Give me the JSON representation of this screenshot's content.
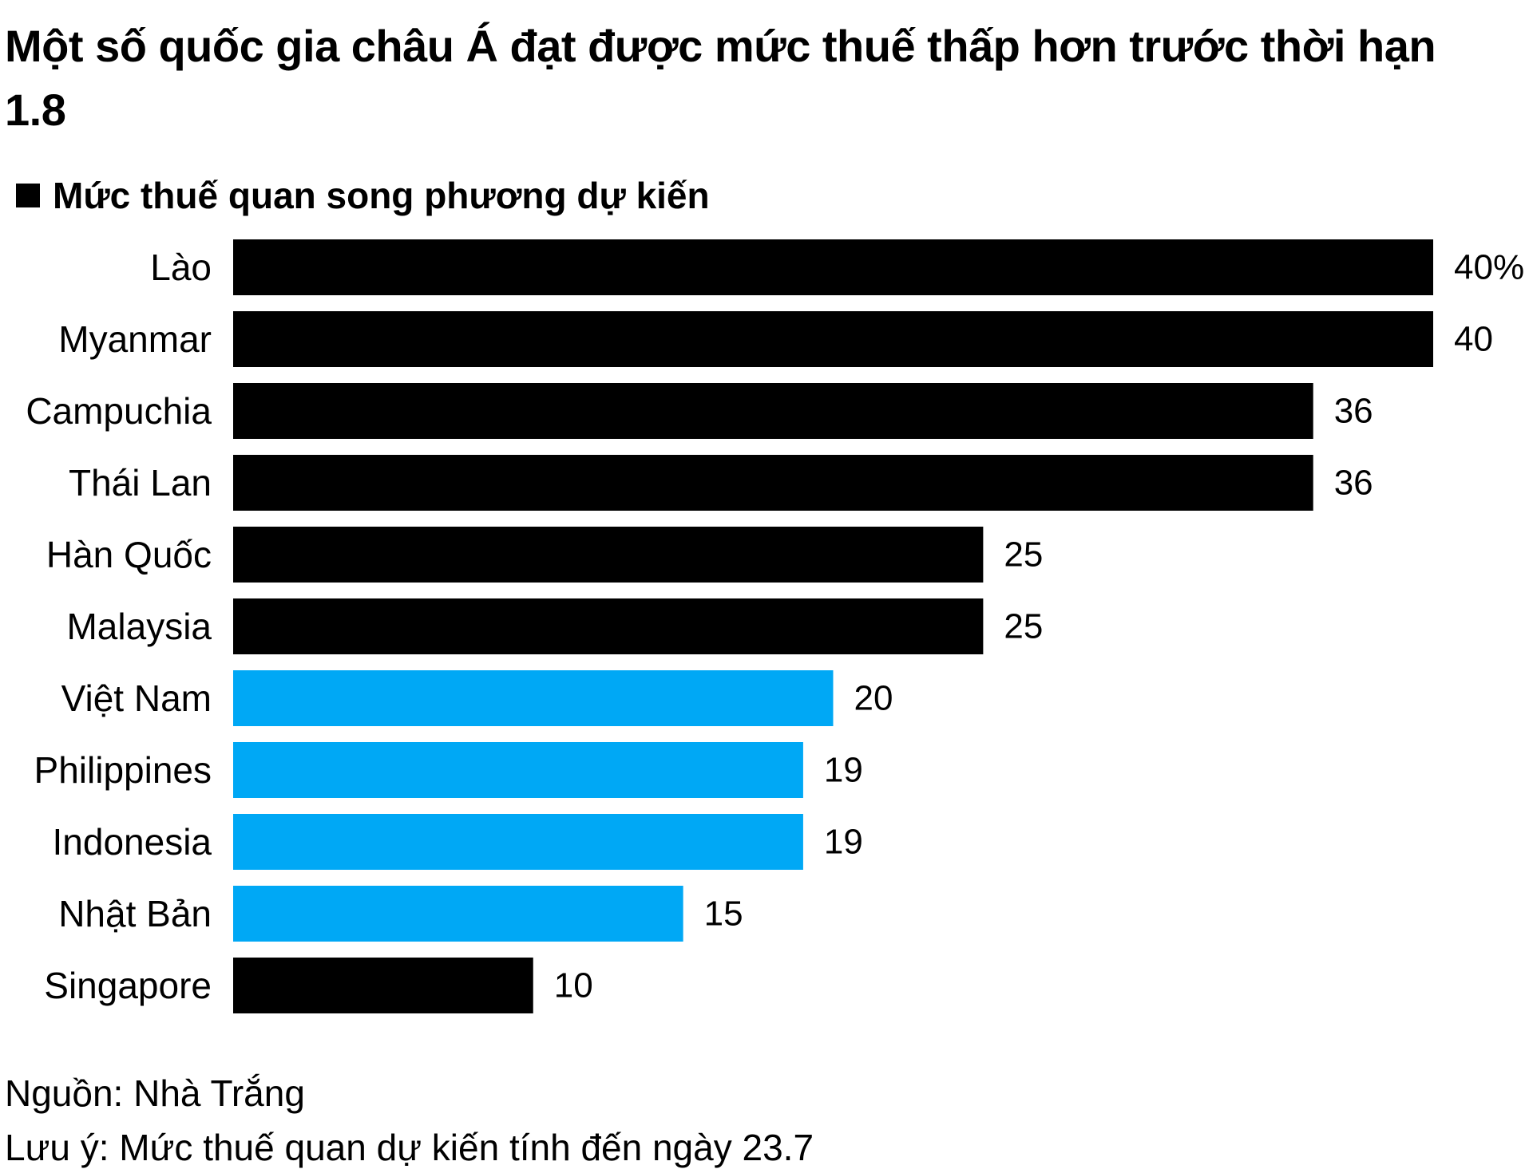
{
  "title": "Một số quốc gia châu Á đạt được mức thuế thấp hơn trước thời hạn 1.8",
  "legend": {
    "label": "Mức thuế quan song phương dự kiến",
    "color": "#000000"
  },
  "colors": {
    "dark": "#000000",
    "highlight": "#00a8f5"
  },
  "chart_data": {
    "type": "bar",
    "orientation": "horizontal",
    "categories": [
      "Lào",
      "Myanmar",
      "Campuchia",
      "Thái Lan",
      "Hàn Quốc",
      "Malaysia",
      "Việt Nam",
      "Philippines",
      "Indonesia",
      "Nhật Bản",
      "Singapore"
    ],
    "values": [
      40,
      40,
      36,
      36,
      25,
      25,
      20,
      19,
      19,
      15,
      10
    ],
    "value_labels": [
      "40%",
      "40",
      "36",
      "36",
      "25",
      "25",
      "20",
      "19",
      "19",
      "15",
      "10"
    ],
    "highlight": [
      false,
      false,
      false,
      false,
      false,
      false,
      true,
      true,
      true,
      true,
      false
    ],
    "series": [
      {
        "name": "Mức thuế quan song phương dự kiến",
        "values": [
          40,
          40,
          36,
          36,
          25,
          25,
          20,
          19,
          19,
          15,
          10
        ]
      }
    ],
    "xlim": [
      0,
      40
    ],
    "grid": false,
    "legend_position": "top-left",
    "xlabel": "",
    "ylabel": ""
  },
  "footer": {
    "source": "Nguồn: Nhà Trắng",
    "note": "Lưu ý: Mức thuế quan dự kiến tính đến ngày 23.7"
  }
}
